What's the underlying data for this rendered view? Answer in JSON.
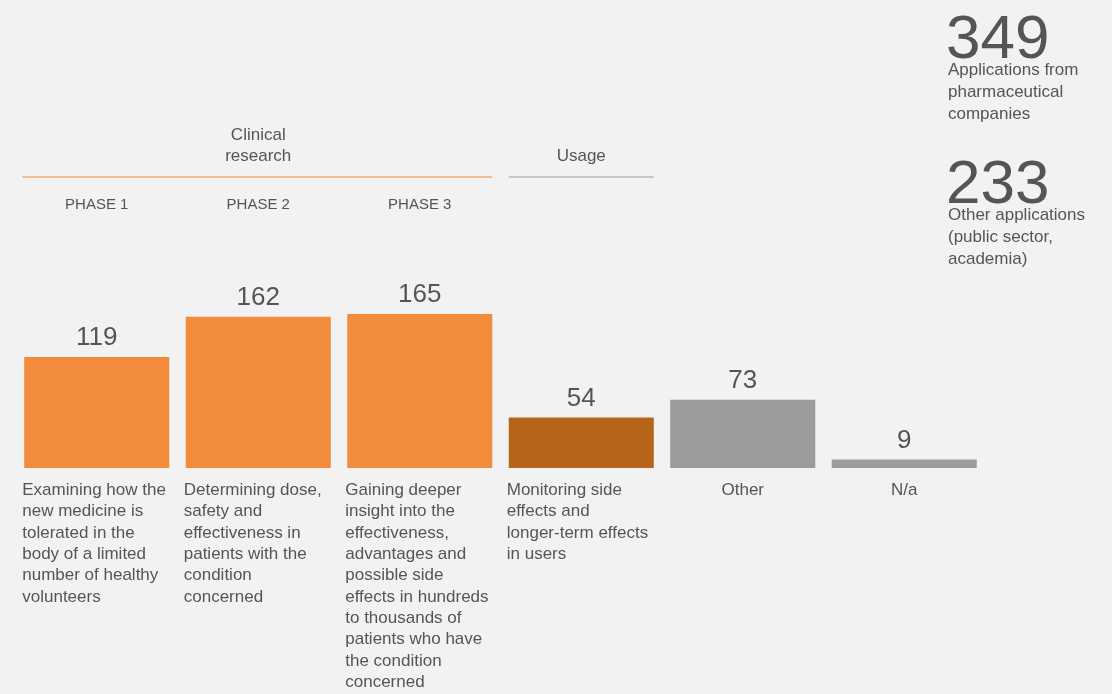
{
  "chart_data": {
    "type": "bar",
    "categories": [
      "Examining how the new medicine is tolerated in the body of a limited number of healthy volunteers",
      "Determining dose, safety and effectiveness in patients with the condition concerned",
      "Gaining deeper insight into the effectiveness, advantages and possible side effects in hundreds to thousands of patients who have the condition concerned",
      "Monitoring side effects and longer-term effects in users",
      "Other",
      "N/a"
    ],
    "values": [
      119,
      162,
      165,
      54,
      73,
      9
    ],
    "colors": [
      "#f28c3c",
      "#f28c3c",
      "#f28c3c",
      "#b5661a",
      "#9c9b9b",
      "#9c9b9b"
    ],
    "data_labels": true,
    "annotations": [
      "Clinical research",
      "Usage",
      "PHASE 1",
      "PHASE 2",
      "PHASE 3",
      "349",
      "Applications from pharmaceutical companies",
      "233",
      "Other applications (public sector, academia)"
    ]
  }
}
